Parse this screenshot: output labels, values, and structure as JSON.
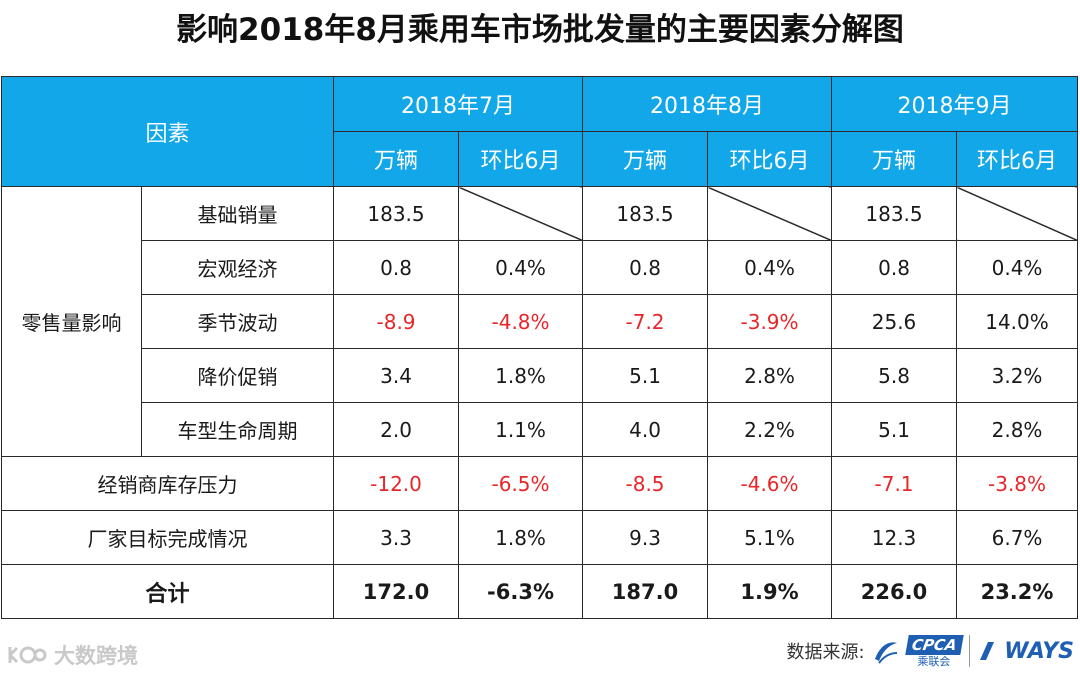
{
  "title": "影响2018年8月乘用车市场批发量的主要因素分解图",
  "header": {
    "factor": "因素",
    "months": [
      "2018年7月",
      "2018年8月",
      "2018年9月"
    ],
    "unit": "万辆",
    "mom": "环比6月"
  },
  "group_label": "零售量影响",
  "rows": [
    {
      "label": "基础销量",
      "jul": "183.5",
      "jul_pct": "",
      "aug": "183.5",
      "aug_pct": "",
      "sep": "183.5",
      "sep_pct": ""
    },
    {
      "label": "宏观经济",
      "jul": "0.8",
      "jul_pct": "0.4%",
      "aug": "0.8",
      "aug_pct": "0.4%",
      "sep": "0.8",
      "sep_pct": "0.4%"
    },
    {
      "label": "季节波动",
      "jul": "-8.9",
      "jul_pct": "-4.8%",
      "aug": "-7.2",
      "aug_pct": "-3.9%",
      "sep": "25.6",
      "sep_pct": "14.0%"
    },
    {
      "label": "降价促销",
      "jul": "3.4",
      "jul_pct": "1.8%",
      "aug": "5.1",
      "aug_pct": "2.8%",
      "sep": "5.8",
      "sep_pct": "3.2%"
    },
    {
      "label": "车型生命周期",
      "jul": "2.0",
      "jul_pct": "1.1%",
      "aug": "4.0",
      "aug_pct": "2.2%",
      "sep": "5.1",
      "sep_pct": "2.8%"
    },
    {
      "label": "经销商库存压力",
      "jul": "-12.0",
      "jul_pct": "-6.5%",
      "aug": "-8.5",
      "aug_pct": "-4.6%",
      "sep": "-7.1",
      "sep_pct": "-3.8%"
    },
    {
      "label": "厂家目标完成情况",
      "jul": "3.3",
      "jul_pct": "1.8%",
      "aug": "9.3",
      "aug_pct": "5.1%",
      "sep": "12.3",
      "sep_pct": "6.7%"
    }
  ],
  "total": {
    "label": "合计",
    "jul": "172.0",
    "jul_pct": "-6.3%",
    "aug": "187.0",
    "aug_pct": "1.9%",
    "sep": "226.0",
    "sep_pct": "23.2%"
  },
  "footer": {
    "watermark": "大数跨境",
    "source_label": "数据来源:",
    "cpca_logo": "CPCA",
    "cpca_sub": "乘联会",
    "ways_logo": "WAYS"
  },
  "colors": {
    "header_bg": "#12a7e8",
    "negative": "#e8262a",
    "border": "#2a2a2a"
  }
}
